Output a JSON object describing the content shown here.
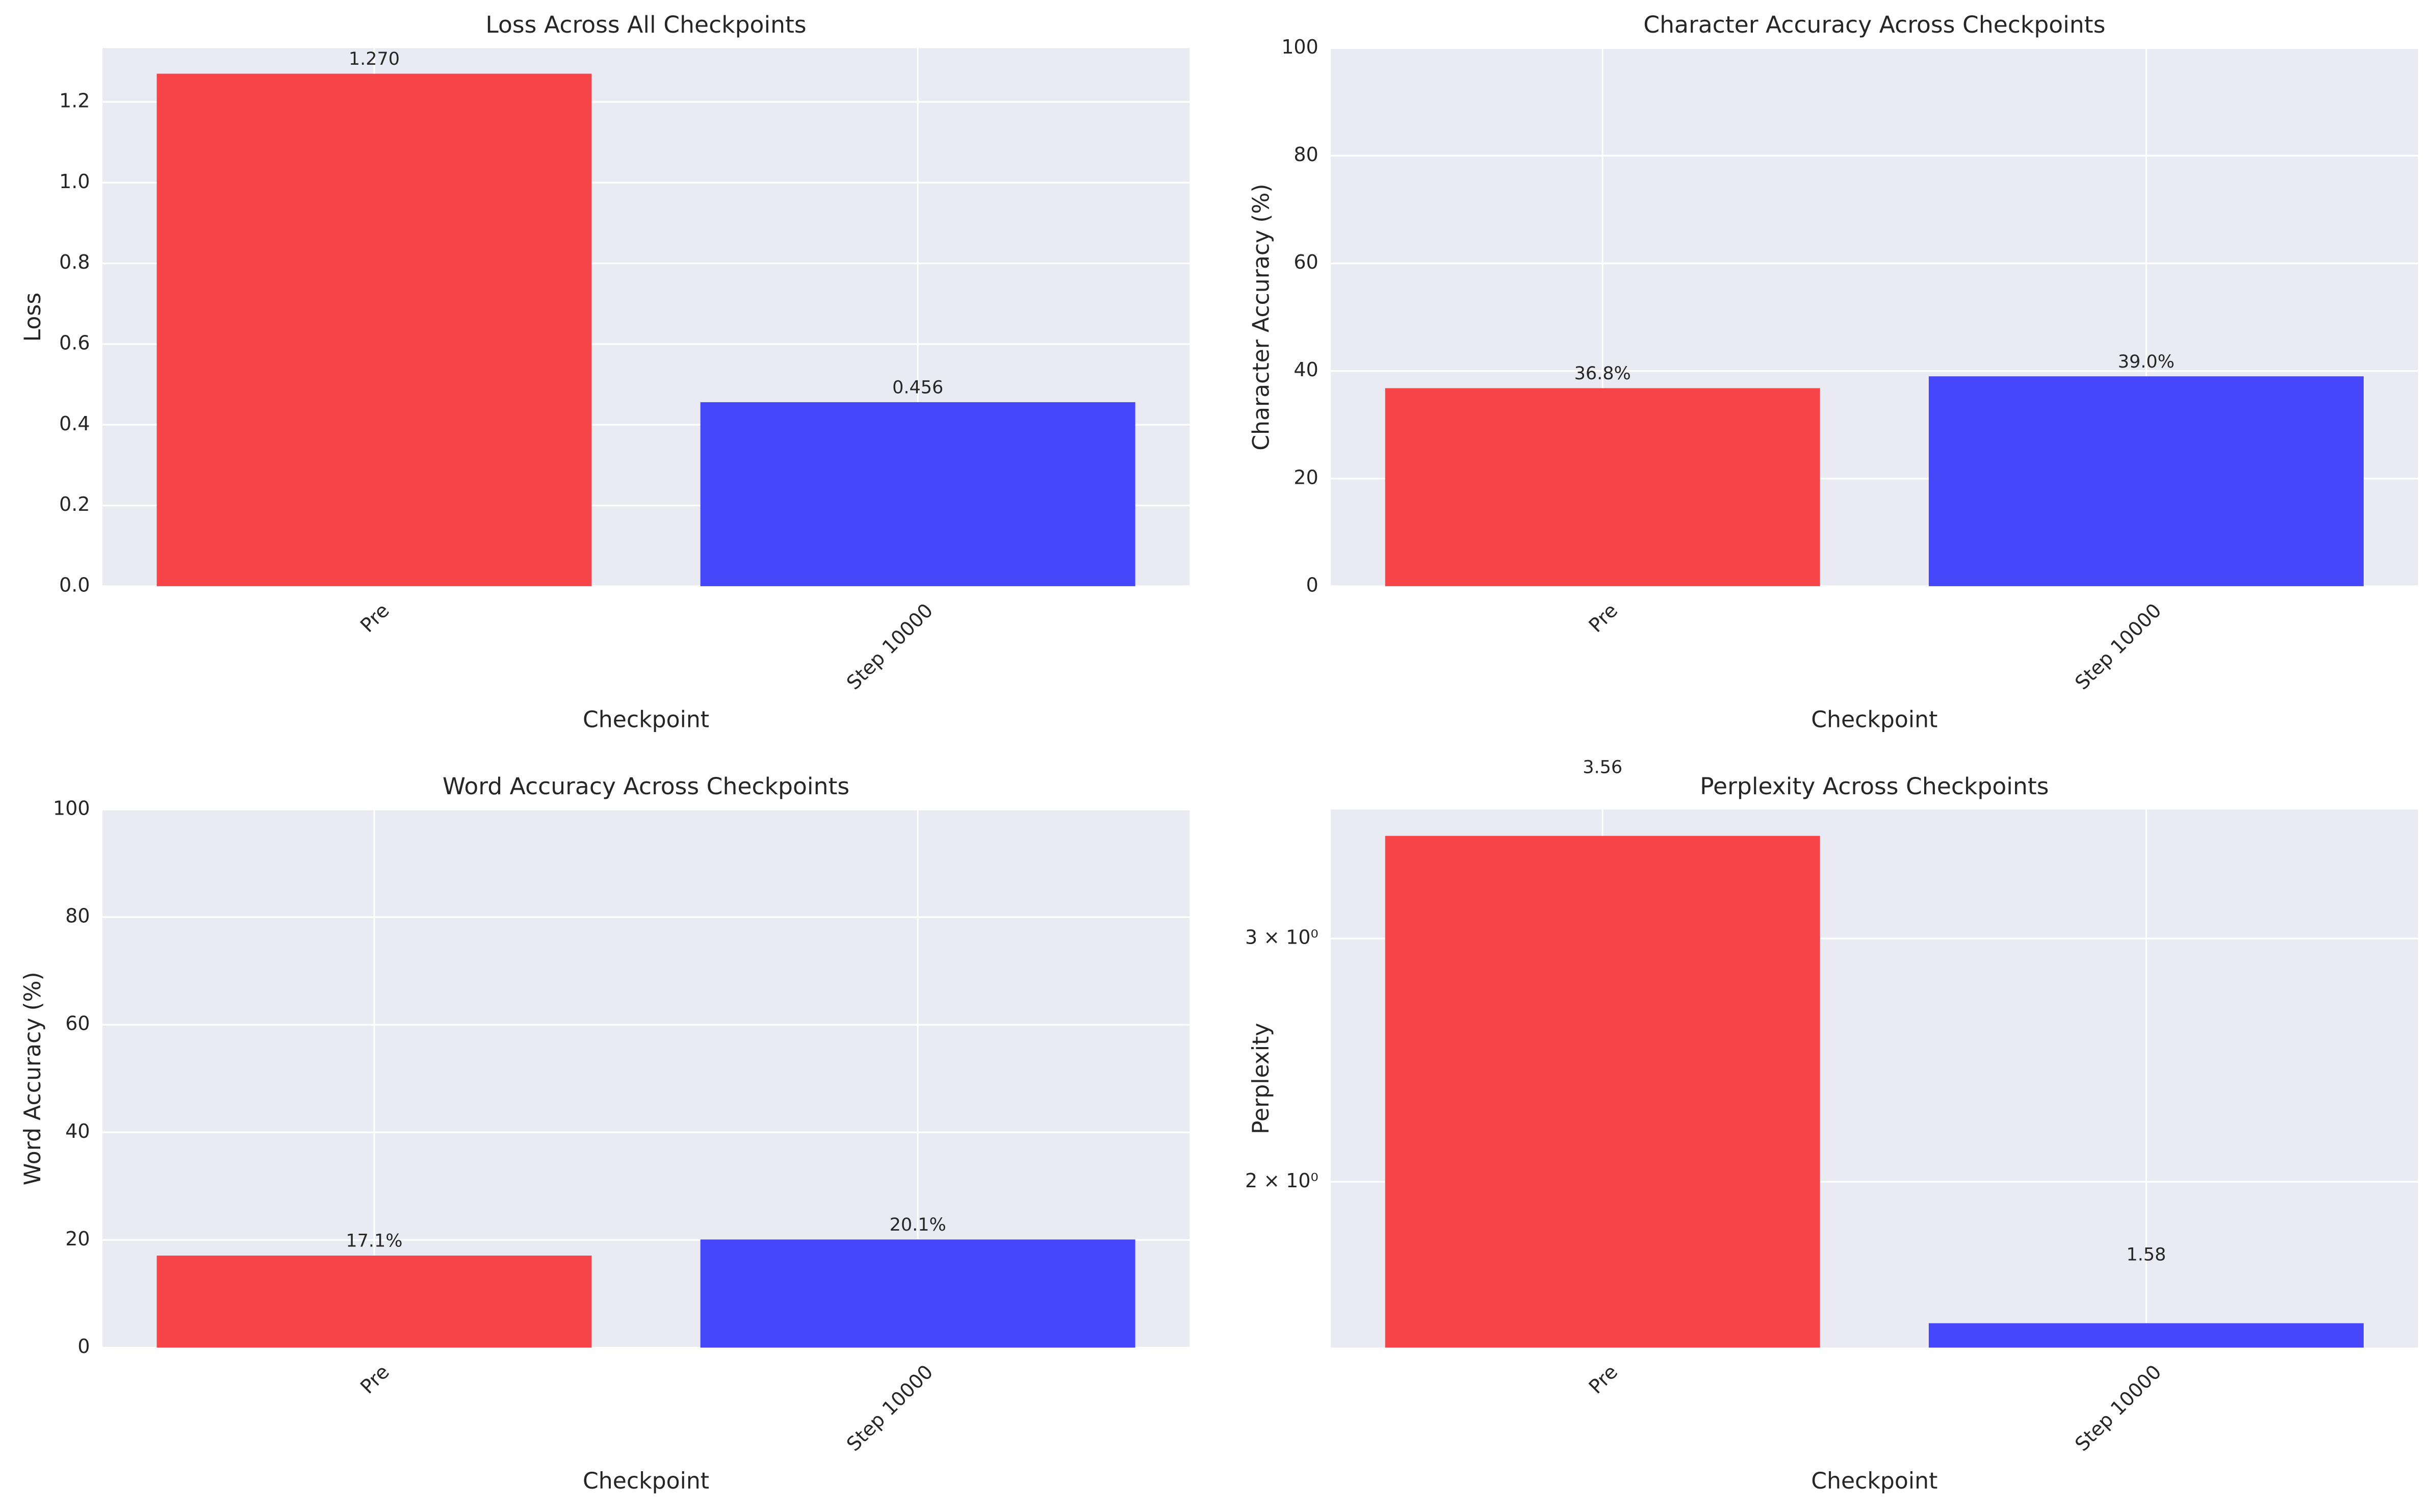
{
  "chart_data": [
    {
      "type": "bar",
      "title": "Loss Across All Checkpoints",
      "xlabel": "Checkpoint",
      "ylabel": "Loss",
      "categories": [
        "Pre",
        "Step 10000"
      ],
      "values": [
        1.27,
        0.456
      ],
      "value_labels": [
        "1.270",
        "0.456"
      ],
      "colors": [
        "#f74449",
        "#4646fa"
      ],
      "ylim": [
        0,
        1.3335
      ],
      "yticks": [
        {
          "value": 0,
          "label": "0.0"
        },
        0.2,
        0.4,
        0.6,
        0.8,
        {
          "value": 1,
          "label": "1.0"
        },
        1.2
      ],
      "grid": true
    },
    {
      "type": "bar",
      "title": "Character Accuracy Across Checkpoints",
      "xlabel": "Checkpoint",
      "ylabel": "Character Accuracy (%)",
      "categories": [
        "Pre",
        "Step 10000"
      ],
      "values": [
        36.8,
        39.0
      ],
      "value_labels": [
        "36.8%",
        "39.0%"
      ],
      "colors": [
        "#f74449",
        "#4646fa"
      ],
      "ylim": [
        0,
        100
      ],
      "yticks": [
        0,
        20,
        40,
        60,
        80,
        100
      ],
      "grid": true
    },
    {
      "type": "bar",
      "title": "Word Accuracy Across Checkpoints",
      "xlabel": "Checkpoint",
      "ylabel": "Word Accuracy (%)",
      "categories": [
        "Pre",
        "Step 10000"
      ],
      "values": [
        17.1,
        20.1
      ],
      "value_labels": [
        "17.1%",
        "20.1%"
      ],
      "colors": [
        "#f74449",
        "#4646fa"
      ],
      "ylim": [
        0,
        100
      ],
      "yticks": [
        0,
        20,
        40,
        60,
        80,
        100
      ],
      "grid": true
    },
    {
      "type": "bar",
      "title": "Perplexity Across Checkpoints",
      "xlabel": "Checkpoint",
      "ylabel": "Perplexity",
      "categories": [
        "Pre",
        "Step 10000"
      ],
      "values": [
        3.56,
        1.58
      ],
      "colors": [
        "#f74449",
        "#4646fa"
      ],
      "ylim": [
        1.517,
        3.72
      ],
      "yscale": "log",
      "yticks": [
        {
          "value": 2,
          "label": "2 × 10⁰"
        },
        {
          "value": 3,
          "label": "3 × 10⁰"
        }
      ],
      "grid": true
    }
  ]
}
